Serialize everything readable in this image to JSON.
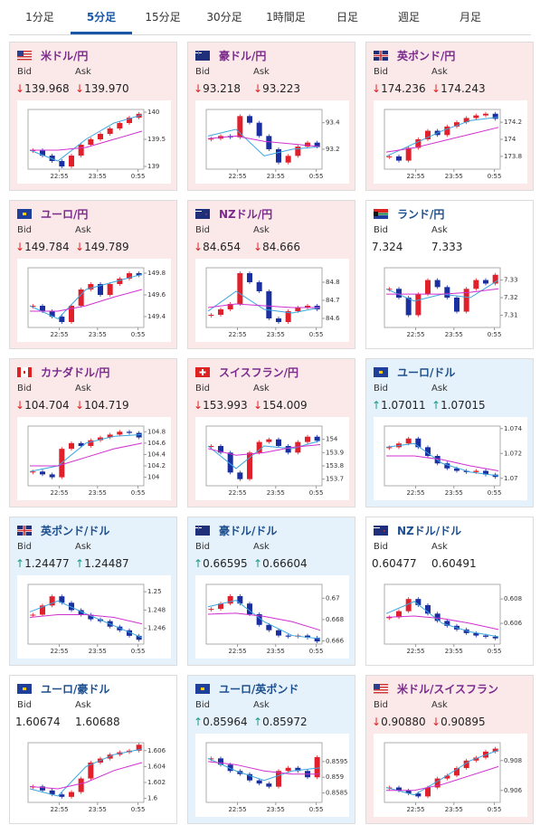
{
  "tabs": [
    "1分足",
    "5分足",
    "15分足",
    "30分足",
    "1時間足",
    "日足",
    "週足",
    "月足"
  ],
  "selected_tab": 1,
  "labels": {
    "bid": "Bid",
    "ask": "Ask"
  },
  "xticks": [
    "22:55",
    "23:55",
    "0:55"
  ],
  "cards": [
    {
      "name": "米ドル/円",
      "theme": "pink",
      "flag": "us",
      "arrow": "↓",
      "bid": "139.968",
      "ask": "139.970",
      "chart": {
        "ylim": [
          138.95,
          140.05
        ],
        "yticks": [
          139,
          139.5,
          140
        ],
        "closes": [
          139.3,
          139.2,
          139.1,
          139.0,
          139.2,
          139.4,
          139.5,
          139.6,
          139.7,
          139.8,
          139.9,
          139.97
        ],
        "fast": [
          139.3,
          139.1,
          139.5,
          139.8,
          139.95
        ],
        "slow": [
          139.3,
          139.3,
          139.35,
          139.5,
          139.65
        ]
      }
    },
    {
      "name": "豪ドル/円",
      "theme": "pink",
      "flag": "au",
      "arrow": "↓",
      "bid": "93.218",
      "ask": "93.223",
      "chart": {
        "ylim": [
          93.05,
          93.5
        ],
        "yticks": [
          93.2,
          93.4
        ],
        "closes": [
          93.28,
          93.3,
          93.29,
          93.45,
          93.4,
          93.3,
          93.2,
          93.1,
          93.15,
          93.22,
          93.25,
          93.22
        ],
        "fast": [
          93.3,
          93.35,
          93.15,
          93.2,
          93.22
        ],
        "slow": [
          93.28,
          93.3,
          93.26,
          93.24,
          93.22
        ]
      }
    },
    {
      "name": "英ポンド/円",
      "theme": "pink",
      "flag": "gb",
      "arrow": "↓",
      "bid": "174.236",
      "ask": "174.243",
      "chart": {
        "ylim": [
          173.65,
          174.35
        ],
        "yticks": [
          173.8,
          174,
          174.2
        ],
        "closes": [
          173.8,
          173.75,
          173.9,
          174.0,
          174.1,
          174.05,
          174.15,
          174.2,
          174.25,
          174.28,
          174.3,
          174.24
        ],
        "fast": [
          173.8,
          173.95,
          174.1,
          174.22,
          174.26
        ],
        "slow": [
          173.85,
          173.9,
          173.98,
          174.06,
          174.14
        ]
      }
    },
    {
      "name": "ユーロ/円",
      "theme": "pink",
      "flag": "eu",
      "arrow": "↓",
      "bid": "149.784",
      "ask": "149.789",
      "chart": {
        "ylim": [
          149.3,
          149.85
        ],
        "yticks": [
          149.4,
          149.6,
          149.8
        ],
        "closes": [
          149.5,
          149.45,
          149.4,
          149.35,
          149.5,
          149.65,
          149.7,
          149.6,
          149.7,
          149.75,
          149.8,
          149.78
        ],
        "fast": [
          149.5,
          149.38,
          149.65,
          149.72,
          149.79
        ],
        "slow": [
          149.45,
          149.45,
          149.5,
          149.58,
          149.65
        ]
      }
    },
    {
      "name": "NZドル/円",
      "theme": "pink",
      "flag": "nz",
      "arrow": "↓",
      "bid": "84.654",
      "ask": "84.666",
      "chart": {
        "ylim": [
          84.55,
          84.88
        ],
        "yticks": [
          84.6,
          84.7,
          84.8
        ],
        "closes": [
          84.62,
          84.65,
          84.68,
          84.85,
          84.8,
          84.75,
          84.6,
          84.58,
          84.64,
          84.66,
          84.67,
          84.65
        ],
        "fast": [
          84.64,
          84.75,
          84.65,
          84.63,
          84.66
        ],
        "slow": [
          84.66,
          84.68,
          84.67,
          84.66,
          84.66
        ]
      }
    },
    {
      "name": "ランド/円",
      "theme": "white",
      "flag": "za",
      "arrow": null,
      "bid": "7.324",
      "ask": "7.333",
      "chart": {
        "ylim": [
          7.303,
          7.337
        ],
        "yticks": [
          7.31,
          7.32,
          7.33
        ],
        "closes": [
          7.325,
          7.32,
          7.31,
          7.322,
          7.33,
          7.326,
          7.32,
          7.312,
          7.325,
          7.33,
          7.328,
          7.333
        ],
        "fast": [
          7.325,
          7.318,
          7.322,
          7.32,
          7.33
        ],
        "slow": [
          7.322,
          7.322,
          7.322,
          7.323,
          7.325
        ]
      }
    },
    {
      "name": "カナダドル/円",
      "theme": "pink",
      "flag": "ca",
      "arrow": "↓",
      "bid": "104.704",
      "ask": "104.719",
      "chart": {
        "ylim": [
          103.85,
          104.9
        ],
        "yticks": [
          104,
          104.2,
          104.4,
          104.6,
          104.8
        ],
        "closes": [
          104.1,
          104.05,
          104.0,
          104.5,
          104.6,
          104.55,
          104.65,
          104.7,
          104.75,
          104.8,
          104.78,
          104.7
        ],
        "fast": [
          104.1,
          104.2,
          104.6,
          104.72,
          104.75
        ],
        "slow": [
          104.2,
          104.2,
          104.35,
          104.5,
          104.6
        ]
      }
    },
    {
      "name": "スイスフラン/円",
      "theme": "pink",
      "flag": "ch",
      "arrow": "↓",
      "bid": "153.993",
      "ask": "154.009",
      "chart": {
        "ylim": [
          153.65,
          154.1
        ],
        "yticks": [
          153.7,
          153.8,
          153.9,
          154
        ],
        "closes": [
          153.95,
          153.9,
          153.75,
          153.7,
          153.9,
          153.98,
          154.0,
          153.95,
          153.9,
          153.98,
          154.02,
          153.99
        ],
        "fast": [
          153.95,
          153.78,
          153.95,
          153.93,
          153.99
        ],
        "slow": [
          153.93,
          153.88,
          153.9,
          153.94,
          153.96
        ]
      }
    },
    {
      "name": "ユーロ/ドル",
      "theme": "blue",
      "flag": "eu",
      "arrow": "↑",
      "bid": "1.07011",
      "ask": "1.07015",
      "chart": {
        "ylim": [
          1.0694,
          1.0742
        ],
        "yticks": [
          1.07,
          1.072,
          1.074
        ],
        "closes": [
          1.0725,
          1.0728,
          1.0732,
          1.0725,
          1.0718,
          1.0712,
          1.0708,
          1.0706,
          1.0705,
          1.0706,
          1.0703,
          1.07011
        ],
        "fast": [
          1.0725,
          1.0728,
          1.0712,
          1.0705,
          1.0702
        ],
        "slow": [
          1.0718,
          1.0718,
          1.0715,
          1.071,
          1.0706
        ]
      }
    },
    {
      "name": "英ポンド/ドル",
      "theme": "blue",
      "flag": "gb",
      "arrow": "↑",
      "bid": "1.24477",
      "ask": "1.24487",
      "chart": {
        "ylim": [
          1.2443,
          1.2508
        ],
        "yticks": [
          1.246,
          1.248,
          1.25
        ],
        "closes": [
          1.2475,
          1.2485,
          1.2495,
          1.2488,
          1.248,
          1.2475,
          1.247,
          1.2468,
          1.2462,
          1.2458,
          1.2452,
          1.24477
        ],
        "fast": [
          1.2478,
          1.249,
          1.2476,
          1.2463,
          1.245
        ],
        "slow": [
          1.2472,
          1.2475,
          1.2475,
          1.2472,
          1.2465
        ]
      }
    },
    {
      "name": "豪ドル/ドル",
      "theme": "blue",
      "flag": "au",
      "arrow": "↑",
      "bid": "0.66595",
      "ask": "0.66604",
      "chart": {
        "ylim": [
          0.6657,
          0.6713
        ],
        "yticks": [
          0.666,
          0.668,
          0.67
        ],
        "closes": [
          0.669,
          0.6695,
          0.6702,
          0.6695,
          0.6685,
          0.6675,
          0.667,
          0.6665,
          0.6664,
          0.6665,
          0.6663,
          0.66595
        ],
        "fast": [
          0.6692,
          0.6698,
          0.6678,
          0.6665,
          0.6662
        ],
        "slow": [
          0.6685,
          0.6686,
          0.6683,
          0.6678,
          0.667
        ]
      }
    },
    {
      "name": "NZドル/ドル",
      "theme": "white",
      "flag": "nz",
      "arrow": null,
      "bid": "0.60477",
      "ask": "0.60491",
      "chart": {
        "ylim": [
          0.6043,
          0.6092
        ],
        "yticks": [
          0.606,
          0.608
        ],
        "closes": [
          0.6065,
          0.607,
          0.608,
          0.6075,
          0.6068,
          0.6062,
          0.6058,
          0.6055,
          0.6052,
          0.605,
          0.6049,
          0.60477
        ],
        "fast": [
          0.6068,
          0.6078,
          0.606,
          0.6053,
          0.6049
        ],
        "slow": [
          0.6065,
          0.6066,
          0.6064,
          0.606,
          0.6055
        ]
      }
    },
    {
      "name": "ユーロ/豪ドル",
      "theme": "white",
      "flag": "eu",
      "arrow": null,
      "bid": "1.60674",
      "ask": "1.60688",
      "chart": {
        "ylim": [
          1.5995,
          1.607
        ],
        "yticks": [
          1.6,
          1.602,
          1.604,
          1.606
        ],
        "closes": [
          1.6015,
          1.601,
          1.6005,
          1.6002,
          1.6008,
          1.6025,
          1.6045,
          1.605,
          1.6055,
          1.6058,
          1.606,
          1.60674
        ],
        "fast": [
          1.6012,
          1.6003,
          1.604,
          1.6055,
          1.6062
        ],
        "slow": [
          1.6015,
          1.6012,
          1.602,
          1.6035,
          1.6045
        ]
      }
    },
    {
      "name": "ユーロ/英ポンド",
      "theme": "blue",
      "flag": "eu",
      "arrow": "↑",
      "bid": "0.85964",
      "ask": "0.85972",
      "chart": {
        "ylim": [
          0.8582,
          0.8601
        ],
        "yticks": [
          0.8585,
          0.859,
          0.8595
        ],
        "closes": [
          0.8596,
          0.8594,
          0.8592,
          0.8591,
          0.8589,
          0.8588,
          0.8587,
          0.8592,
          0.8593,
          0.8592,
          0.859,
          0.85964
        ],
        "fast": [
          0.8596,
          0.8592,
          0.8589,
          0.8592,
          0.8593
        ],
        "slow": [
          0.8595,
          0.8594,
          0.8592,
          0.8591,
          0.8591
        ]
      }
    },
    {
      "name": "米ドル/スイスフラン",
      "theme": "pink",
      "flag": "us",
      "arrow": "↓",
      "bid": "0.90880",
      "ask": "0.90895",
      "chart": {
        "ylim": [
          0.9052,
          0.9092
        ],
        "yticks": [
          0.906,
          0.908
        ],
        "closes": [
          0.9062,
          0.906,
          0.9058,
          0.9056,
          0.9062,
          0.9068,
          0.907,
          0.9075,
          0.908,
          0.9082,
          0.9086,
          0.9088
        ],
        "fast": [
          0.9062,
          0.9057,
          0.9068,
          0.908,
          0.9087
        ],
        "slow": [
          0.906,
          0.906,
          0.9064,
          0.907,
          0.9076
        ]
      }
    }
  ]
}
